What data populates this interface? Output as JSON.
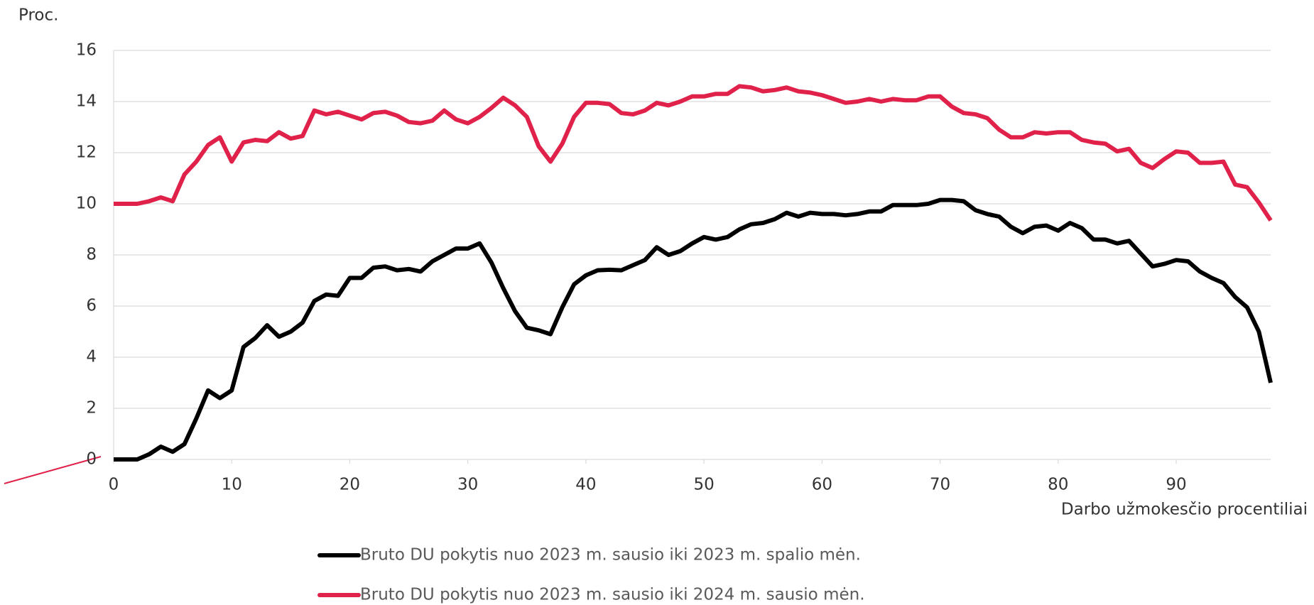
{
  "chart_data": {
    "type": "line",
    "ylabel": "Proc.",
    "xlabel": "Darbo užmokesčio procentiliai",
    "x": [
      0,
      1,
      2,
      3,
      4,
      5,
      6,
      7,
      8,
      9,
      10,
      11,
      12,
      13,
      14,
      15,
      16,
      17,
      18,
      19,
      20,
      21,
      22,
      23,
      24,
      25,
      26,
      27,
      28,
      29,
      30,
      31,
      32,
      33,
      34,
      35,
      36,
      37,
      38,
      39,
      40,
      41,
      42,
      43,
      44,
      45,
      46,
      47,
      48,
      49,
      50,
      51,
      52,
      53,
      54,
      55,
      56,
      57,
      58,
      59,
      60,
      61,
      62,
      63,
      64,
      65,
      66,
      67,
      68,
      69,
      70,
      71,
      72,
      73,
      74,
      75,
      76,
      77,
      78,
      79,
      80,
      81,
      82,
      83,
      84,
      85,
      86,
      87,
      88,
      89,
      90,
      91,
      92,
      93,
      94,
      95,
      96,
      97,
      98
    ],
    "series": [
      {
        "name": "Bruto DU pokytis nuo 2023 m. sausio iki 2023 m. spalio mėn.",
        "color": "#000000",
        "values": [
          0,
          0,
          0,
          0.2,
          0.5,
          0.3,
          0.6,
          1.6,
          2.7,
          2.4,
          2.7,
          4.4,
          4.75,
          5.25,
          4.8,
          5.0,
          5.35,
          6.2,
          6.45,
          6.4,
          7.1,
          7.1,
          7.5,
          7.55,
          7.4,
          7.45,
          7.35,
          7.75,
          8.0,
          8.25,
          8.25,
          8.45,
          7.7,
          6.7,
          5.8,
          5.15,
          5.05,
          4.9,
          5.95,
          6.85,
          7.2,
          7.4,
          7.42,
          7.4,
          7.6,
          7.8,
          8.3,
          8.0,
          8.15,
          8.45,
          8.7,
          8.6,
          8.7,
          9.0,
          9.2,
          9.25,
          9.4,
          9.65,
          9.5,
          9.65,
          9.6,
          9.6,
          9.55,
          9.6,
          9.7,
          9.7,
          9.95,
          9.95,
          9.95,
          10.0,
          10.15,
          10.15,
          10.1,
          9.75,
          9.6,
          9.5,
          9.1,
          8.85,
          9.1,
          9.15,
          8.95,
          9.25,
          9.05,
          8.6,
          8.6,
          8.45,
          8.55,
          8.05,
          7.55,
          7.65,
          7.8,
          7.75,
          7.35,
          7.1,
          6.9,
          6.35,
          5.95,
          5.0,
          3.0
        ]
      },
      {
        "name": "Bruto DU pokytis nuo 2023 m. sausio iki 2024 m. sausio mėn.",
        "color": "#e0224a",
        "values": [
          10,
          10,
          10,
          10.1,
          10.25,
          10.1,
          11.15,
          11.65,
          12.3,
          12.6,
          11.65,
          12.4,
          12.5,
          12.45,
          12.8,
          12.55,
          12.65,
          13.65,
          13.5,
          13.6,
          13.45,
          13.3,
          13.55,
          13.6,
          13.45,
          13.2,
          13.15,
          13.25,
          13.65,
          13.3,
          13.15,
          13.4,
          13.75,
          14.15,
          13.85,
          13.4,
          12.25,
          11.65,
          12.35,
          13.4,
          13.95,
          13.95,
          13.9,
          13.55,
          13.5,
          13.65,
          13.95,
          13.85,
          14.0,
          14.2,
          14.2,
          14.3,
          14.3,
          14.6,
          14.55,
          14.4,
          14.45,
          14.55,
          14.4,
          14.35,
          14.25,
          14.1,
          13.95,
          14.0,
          14.1,
          14.0,
          14.1,
          14.05,
          14.05,
          14.2,
          14.2,
          13.8,
          13.55,
          13.5,
          13.35,
          12.9,
          12.6,
          12.6,
          12.8,
          12.75,
          12.8,
          12.8,
          12.5,
          12.4,
          12.35,
          12.05,
          12.15,
          11.6,
          11.4,
          11.75,
          12.05,
          12.0,
          11.6,
          11.6,
          11.65,
          10.75,
          10.65,
          10.05,
          9.35
        ]
      }
    ],
    "xlim": [
      0,
      98
    ],
    "xticks": [
      0,
      10,
      20,
      30,
      40,
      50,
      60,
      70,
      80,
      90
    ],
    "ylim": [
      0,
      16
    ],
    "yticks": [
      0,
      2,
      4,
      6,
      8,
      10,
      12,
      14,
      16
    ],
    "grid": true
  }
}
